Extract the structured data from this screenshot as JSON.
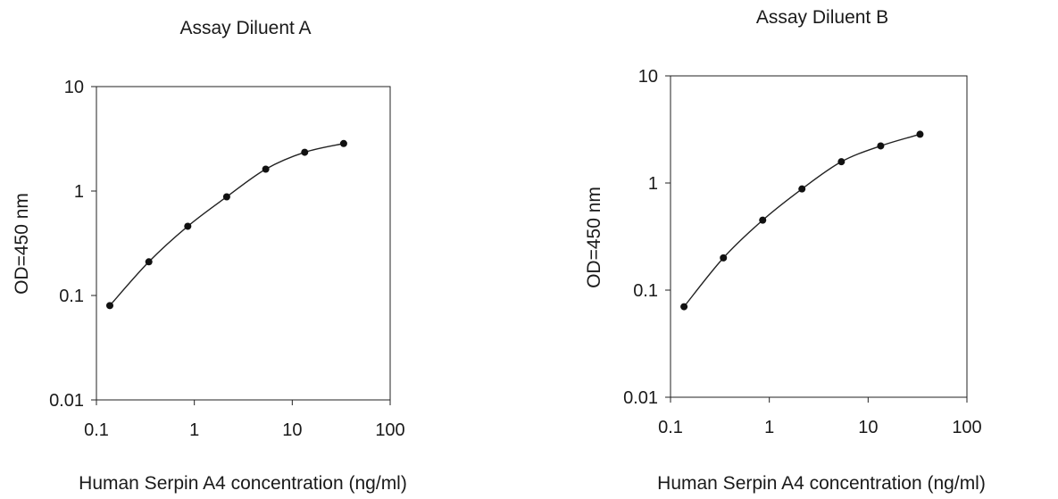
{
  "chart_data": [
    {
      "type": "line",
      "title": "Assay Diluent A",
      "xlabel": "Human Serpin A4 concentration (ng/ml)",
      "ylabel": "OD=450 nm",
      "xscale": "log",
      "yscale": "log",
      "xlim": [
        0.1,
        100
      ],
      "ylim": [
        0.01,
        10
      ],
      "xticks": [
        "0.1",
        "1",
        "10",
        "100"
      ],
      "yticks": [
        "0.01",
        "0.1",
        "1",
        "10"
      ],
      "grid": false,
      "legend": "none",
      "series": [
        {
          "x": [
            0.137,
            0.343,
            0.857,
            2.14,
            5.36,
            13.4,
            33.5
          ],
          "y": [
            0.08,
            0.21,
            0.46,
            0.88,
            1.62,
            2.35,
            2.85
          ]
        }
      ]
    },
    {
      "type": "line",
      "title": "Assay Diluent B",
      "xlabel": "Human Serpin A4 concentration (ng/ml)",
      "ylabel": "OD=450 nm",
      "xscale": "log",
      "yscale": "log",
      "xlim": [
        0.1,
        100
      ],
      "ylim": [
        0.01,
        10
      ],
      "xticks": [
        "0.1",
        "1",
        "10",
        "100"
      ],
      "yticks": [
        "0.01",
        "0.1",
        "1",
        "10"
      ],
      "grid": false,
      "legend": "none",
      "series": [
        {
          "x": [
            0.137,
            0.343,
            0.857,
            2.14,
            5.36,
            13.4,
            33.5
          ],
          "y": [
            0.07,
            0.2,
            0.45,
            0.88,
            1.58,
            2.22,
            2.85
          ]
        }
      ]
    }
  ]
}
